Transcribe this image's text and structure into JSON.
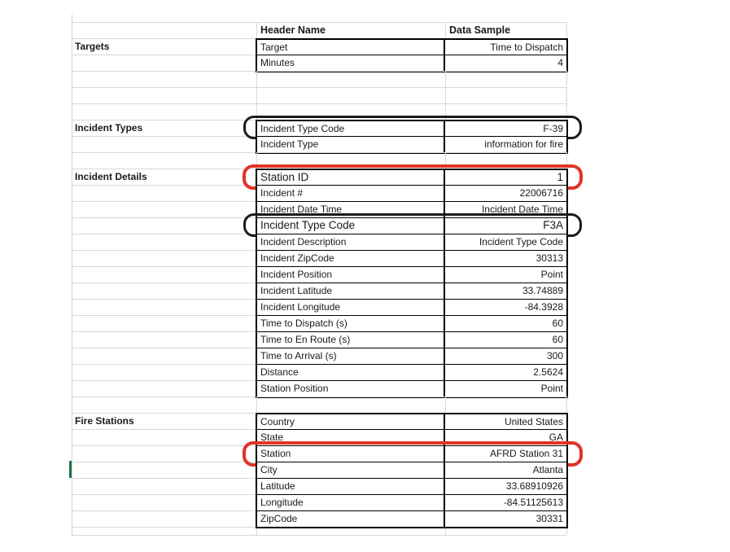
{
  "columns": {
    "header_name": "Header Name",
    "data_sample": "Data Sample"
  },
  "accent_colors": {
    "annotation_black": "#1a1a1a",
    "annotation_red": "#e13327",
    "selection_green": "#217346",
    "gridline_gray": "#d8d8d8"
  },
  "sections": [
    {
      "label": "Targets",
      "gap_before": 0,
      "rows": [
        {
          "header": "Target",
          "sample": "Time to Dispatch"
        },
        {
          "header": "Minutes",
          "sample": "4"
        }
      ]
    },
    {
      "label": "Incident Types",
      "gap_before": 3,
      "rows": [
        {
          "header": "Incident Type Code",
          "sample": "F-39",
          "highlight": "black"
        },
        {
          "header": "Incident Type",
          "sample": "information for fire"
        }
      ]
    },
    {
      "label": "Incident Details",
      "gap_before": 1,
      "rows": [
        {
          "header": "Station ID",
          "sample": "1",
          "highlight": "red",
          "large": true
        },
        {
          "header": "Incident #",
          "sample": "22006716"
        },
        {
          "header": "Incident Date Time",
          "sample": "Incident Date Time"
        },
        {
          "header": "Incident Type Code",
          "sample": "F3A",
          "highlight": "black",
          "large": true
        },
        {
          "header": "Incident Description",
          "sample": "Incident Type Code"
        },
        {
          "header": "Incident ZipCode",
          "sample": "30313"
        },
        {
          "header": "Incident Position",
          "sample": "Point"
        },
        {
          "header": "Incident Latitude",
          "sample": "33.74889"
        },
        {
          "header": "Incident Longitude",
          "sample": "-84.3928"
        },
        {
          "header": "Time to Dispatch (s)",
          "sample": "60"
        },
        {
          "header": "Time to En Route (s)",
          "sample": "60"
        },
        {
          "header": "Time to Arrival (s)",
          "sample": "300"
        },
        {
          "header": "Distance",
          "sample": "2.5624"
        },
        {
          "header": "Station Position",
          "sample": "Point"
        }
      ]
    },
    {
      "label": "Fire Stations",
      "gap_before": 1,
      "rows": [
        {
          "header": "Country",
          "sample": "United States"
        },
        {
          "header": "State",
          "sample": "GA"
        },
        {
          "header": "Station",
          "sample": "AFRD Station 31",
          "highlight": "red"
        },
        {
          "header": "City",
          "sample": "Atlanta"
        },
        {
          "header": "Latitude",
          "sample": "33.68910926"
        },
        {
          "header": "Longitude",
          "sample": "-84.51125613"
        },
        {
          "header": "ZipCode",
          "sample": "30331"
        }
      ]
    }
  ]
}
